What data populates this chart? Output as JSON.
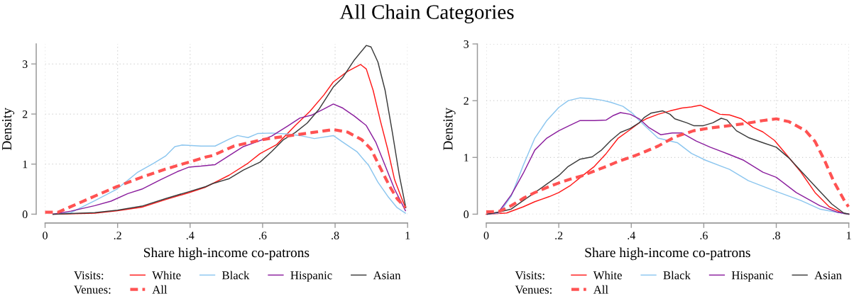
{
  "chart_data": [
    {
      "type": "line",
      "title": "All Chain Categories",
      "xlabel": "Share high-income co-patrons",
      "ylabel": "Density",
      "xlim": [
        0,
        1
      ],
      "xticks": [
        0,
        {
          "value": 0.2,
          "label": ".2"
        },
        {
          "value": 0.4,
          "label": ".4"
        },
        {
          "value": 0.6,
          "label": ".6"
        },
        {
          "value": 0.8,
          "label": ".8"
        },
        1
      ],
      "ylim": [
        0,
        3.4
      ],
      "yticks": [
        0,
        1,
        2,
        3
      ],
      "grid": true,
      "legend": "bottom",
      "annotations": [
        "Visits:",
        "Venues:"
      ],
      "series": [
        {
          "name": "White",
          "color": "#ff1a1a",
          "line_style": "solid",
          "x": [
            0.022,
            0.137,
            0.2,
            0.267,
            0.332,
            0.397,
            0.443,
            0.462,
            0.508,
            0.56,
            0.593,
            0.639,
            0.69,
            0.73,
            0.769,
            0.795,
            0.834,
            0.87,
            0.886,
            0.905,
            0.925,
            0.945,
            0.964,
            0.984,
            0.994
          ],
          "values": [
            0,
            0.02,
            0.07,
            0.14,
            0.29,
            0.43,
            0.54,
            0.61,
            0.78,
            1.02,
            1.21,
            1.39,
            1.77,
            2.05,
            2.38,
            2.64,
            2.85,
            2.99,
            2.9,
            2.47,
            1.86,
            1.3,
            0.69,
            0.31,
            0.13
          ]
        },
        {
          "name": "Black",
          "color": "#8cc6ef",
          "line_style": "solid",
          "x": [
            0.022,
            0.071,
            0.137,
            0.198,
            0.254,
            0.3,
            0.332,
            0.358,
            0.378,
            0.43,
            0.469,
            0.508,
            0.531,
            0.56,
            0.586,
            0.625,
            0.671,
            0.703,
            0.743,
            0.795,
            0.821,
            0.86,
            0.893,
            0.918,
            0.945,
            0.971,
            0.994
          ],
          "values": [
            0,
            0.03,
            0.27,
            0.5,
            0.83,
            1.02,
            1.16,
            1.35,
            1.38,
            1.36,
            1.36,
            1.5,
            1.57,
            1.53,
            1.61,
            1.62,
            1.6,
            1.57,
            1.51,
            1.57,
            1.44,
            1.25,
            0.97,
            0.64,
            0.36,
            0.13,
            0.02
          ]
        },
        {
          "name": "Hispanic",
          "color": "#8b1f9e",
          "line_style": "solid",
          "x": [
            0.022,
            0.071,
            0.137,
            0.182,
            0.228,
            0.267,
            0.319,
            0.365,
            0.397,
            0.43,
            0.469,
            0.508,
            0.547,
            0.586,
            0.625,
            0.671,
            0.703,
            0.736,
            0.769,
            0.795,
            0.821,
            0.853,
            0.886,
            0.912,
            0.938,
            0.964,
            0.994
          ],
          "values": [
            0,
            0.06,
            0.17,
            0.26,
            0.41,
            0.5,
            0.69,
            0.85,
            0.94,
            0.96,
            0.99,
            1.17,
            1.35,
            1.45,
            1.56,
            1.77,
            1.92,
            1.98,
            2.1,
            2.2,
            2.12,
            1.96,
            1.77,
            1.44,
            0.97,
            0.5,
            0.07
          ]
        },
        {
          "name": "Asian",
          "color": "#3c3c3c",
          "line_style": "solid",
          "x": [
            0.022,
            0.137,
            0.2,
            0.267,
            0.332,
            0.397,
            0.443,
            0.462,
            0.508,
            0.547,
            0.593,
            0.625,
            0.658,
            0.69,
            0.723,
            0.756,
            0.795,
            0.821,
            0.853,
            0.886,
            0.899,
            0.918,
            0.938,
            0.958,
            0.977,
            0.995
          ],
          "values": [
            0,
            0.03,
            0.08,
            0.16,
            0.31,
            0.45,
            0.55,
            0.61,
            0.71,
            0.88,
            1.04,
            1.25,
            1.49,
            1.63,
            1.82,
            2.1,
            2.54,
            2.73,
            3.08,
            3.37,
            3.34,
            3.04,
            2.47,
            1.63,
            0.78,
            0.13
          ]
        },
        {
          "name": "All",
          "color": "#ff5252",
          "line_style": "dashed",
          "x": [
            0,
            0.036,
            0.071,
            0.137,
            0.198,
            0.267,
            0.332,
            0.397,
            0.443,
            0.462,
            0.521,
            0.6,
            0.677,
            0.736,
            0.795,
            0.834,
            0.873,
            0.899,
            0.925,
            0.951,
            0.971,
            0.994
          ],
          "values": [
            0.04,
            0.04,
            0.15,
            0.36,
            0.55,
            0.74,
            0.9,
            1.04,
            1.14,
            1.17,
            1.36,
            1.49,
            1.57,
            1.63,
            1.69,
            1.64,
            1.49,
            1.3,
            0.92,
            0.55,
            0.31,
            0.13
          ]
        }
      ]
    },
    {
      "type": "line",
      "xlabel": "Share high-income co-patrons",
      "ylabel": "Density",
      "xlim": [
        0,
        1
      ],
      "xticks": [
        0,
        {
          "value": 0.2,
          "label": ".2"
        },
        {
          "value": 0.4,
          "label": ".4"
        },
        {
          "value": 0.6,
          "label": ".6"
        },
        {
          "value": 0.8,
          "label": ".8"
        },
        1
      ],
      "ylim": [
        0,
        3
      ],
      "yticks": [
        0,
        1,
        2,
        3
      ],
      "grid": true,
      "legend": "bottom",
      "annotations": [
        "Visits:",
        "Venues:"
      ],
      "series": [
        {
          "name": "White",
          "color": "#ff1a1a",
          "line_style": "solid",
          "x": [
            0,
            0.056,
            0.102,
            0.134,
            0.174,
            0.2,
            0.233,
            0.266,
            0.298,
            0.331,
            0.364,
            0.397,
            0.422,
            0.441,
            0.474,
            0.507,
            0.54,
            0.566,
            0.591,
            0.618,
            0.645,
            0.671,
            0.704,
            0.736,
            0.763,
            0.795,
            0.828,
            0.868,
            0.907,
            0.946,
            0.986,
            1.0
          ],
          "values": [
            0,
            0.02,
            0.13,
            0.22,
            0.31,
            0.38,
            0.51,
            0.68,
            0.84,
            1.07,
            1.34,
            1.49,
            1.61,
            1.68,
            1.76,
            1.82,
            1.87,
            1.89,
            1.92,
            1.84,
            1.76,
            1.75,
            1.68,
            1.53,
            1.45,
            1.3,
            1.05,
            0.74,
            0.38,
            0.13,
            0.01,
            0
          ]
        },
        {
          "name": "Black",
          "color": "#8cc6ef",
          "line_style": "solid",
          "x": [
            0.003,
            0.036,
            0.069,
            0.102,
            0.134,
            0.167,
            0.2,
            0.226,
            0.259,
            0.285,
            0.318,
            0.344,
            0.377,
            0.403,
            0.422,
            0.474,
            0.527,
            0.566,
            0.605,
            0.671,
            0.723,
            0.8,
            0.868,
            0.92,
            0.986,
            1.0
          ],
          "values": [
            0,
            0.02,
            0.32,
            0.86,
            1.34,
            1.65,
            1.88,
            2.0,
            2.05,
            2.04,
            2.01,
            1.97,
            1.9,
            1.78,
            1.65,
            1.34,
            1.26,
            1.07,
            0.95,
            0.79,
            0.59,
            0.4,
            0.24,
            0.09,
            0.01,
            0
          ]
        },
        {
          "name": "Hispanic",
          "color": "#8b1f9e",
          "line_style": "solid",
          "x": [
            0.003,
            0.033,
            0.069,
            0.102,
            0.134,
            0.167,
            0.2,
            0.226,
            0.259,
            0.298,
            0.331,
            0.351,
            0.37,
            0.397,
            0.422,
            0.448,
            0.481,
            0.513,
            0.54,
            0.579,
            0.618,
            0.671,
            0.71,
            0.763,
            0.8,
            0.855,
            0.92,
            0.966,
            1.0
          ],
          "values": [
            0,
            0.03,
            0.34,
            0.72,
            1.13,
            1.34,
            1.47,
            1.55,
            1.65,
            1.65,
            1.66,
            1.74,
            1.79,
            1.76,
            1.68,
            1.53,
            1.4,
            1.43,
            1.43,
            1.29,
            1.18,
            1.05,
            0.95,
            0.74,
            0.65,
            0.38,
            0.15,
            0.04,
            0
          ]
        },
        {
          "name": "Asian",
          "color": "#3c3c3c",
          "line_style": "solid",
          "x": [
            0.003,
            0.036,
            0.069,
            0.102,
            0.134,
            0.167,
            0.2,
            0.226,
            0.259,
            0.292,
            0.318,
            0.344,
            0.37,
            0.397,
            0.422,
            0.435,
            0.454,
            0.487,
            0.507,
            0.52,
            0.553,
            0.572,
            0.599,
            0.625,
            0.648,
            0.664,
            0.69,
            0.723,
            0.763,
            0.8,
            0.835,
            0.874,
            0.913,
            0.953,
            0.986,
            1.0
          ],
          "values": [
            0,
            0.04,
            0.09,
            0.24,
            0.38,
            0.53,
            0.68,
            0.84,
            0.97,
            1.01,
            1.13,
            1.3,
            1.44,
            1.51,
            1.61,
            1.7,
            1.78,
            1.82,
            1.76,
            1.68,
            1.61,
            1.56,
            1.56,
            1.61,
            1.69,
            1.66,
            1.47,
            1.35,
            1.26,
            1.18,
            0.99,
            0.72,
            0.45,
            0.18,
            0.02,
            0
          ]
        },
        {
          "name": "All",
          "color": "#ff5252",
          "line_style": "dashed",
          "x": [
            0,
            0.036,
            0.069,
            0.102,
            0.134,
            0.167,
            0.2,
            0.233,
            0.266,
            0.298,
            0.331,
            0.364,
            0.397,
            0.43,
            0.474,
            0.52,
            0.572,
            0.618,
            0.671,
            0.717,
            0.763,
            0.8,
            0.835,
            0.881,
            0.907,
            0.933,
            0.959,
            0.986,
            0.999
          ],
          "values": [
            0.04,
            0.05,
            0.15,
            0.28,
            0.38,
            0.47,
            0.55,
            0.62,
            0.68,
            0.76,
            0.84,
            0.93,
            1.0,
            1.08,
            1.2,
            1.36,
            1.47,
            1.52,
            1.56,
            1.6,
            1.65,
            1.68,
            1.63,
            1.47,
            1.28,
            0.95,
            0.57,
            0.26,
            0.13
          ]
        }
      ]
    }
  ]
}
